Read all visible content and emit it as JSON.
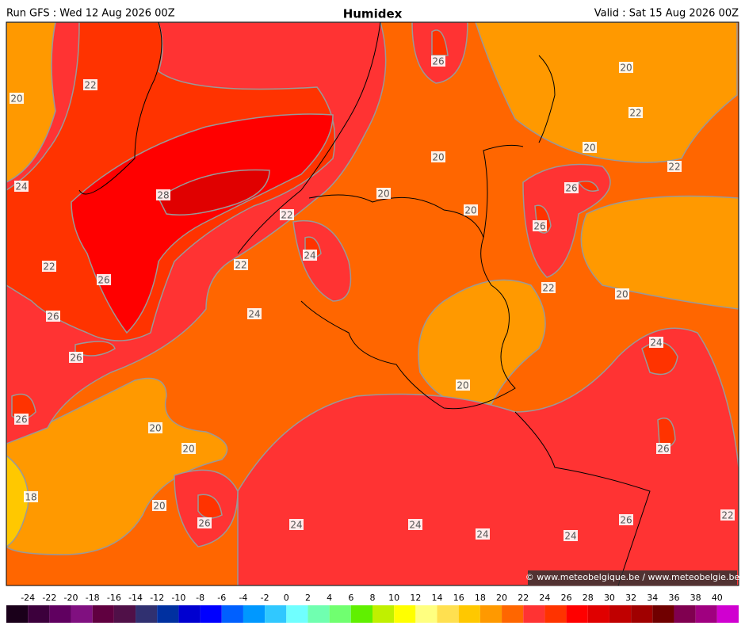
{
  "header": {
    "left": "Run GFS : Wed 12 Aug 2026 00Z",
    "title": "Humidex",
    "right": "Valid : Sat 15 Aug 2026 00Z"
  },
  "map": {
    "contour_labels": [
      22,
      20,
      26,
      20,
      22,
      20,
      20,
      22,
      24,
      28,
      20,
      26,
      20,
      22,
      26,
      24,
      22,
      22,
      26,
      22,
      20,
      26,
      24,
      24,
      26,
      20,
      26,
      20,
      20,
      26,
      18,
      20,
      26,
      24,
      24,
      24,
      26,
      22,
      24
    ],
    "copyright": "© www.meteobelgique.be / www.meteobelgie.be"
  },
  "colorbar": {
    "ticks": [
      -24,
      -22,
      -20,
      -18,
      -16,
      -14,
      -12,
      -10,
      -8,
      -6,
      -4,
      -2,
      0,
      2,
      4,
      6,
      8,
      10,
      12,
      14,
      16,
      18,
      20,
      22,
      24,
      26,
      28,
      30,
      32,
      34,
      36,
      38,
      40
    ],
    "colors": [
      "#1a001a",
      "#3c003c",
      "#600060",
      "#801080",
      "#600040",
      "#501048",
      "#303070",
      "#0030a0",
      "#0000d0",
      "#0000ff",
      "#0060ff",
      "#0098ff",
      "#30c8ff",
      "#70ffff",
      "#70ffb0",
      "#70ff70",
      "#60f000",
      "#c0f000",
      "#ffff00",
      "#ffff80",
      "#ffe050",
      "#ffc800",
      "#ff9900",
      "#ff6600",
      "#ff3333",
      "#ff3300",
      "#ff0000",
      "#e00000",
      "#c00000",
      "#a00000",
      "#700000",
      "#800050",
      "#a00080",
      "#d000d0"
    ]
  }
}
